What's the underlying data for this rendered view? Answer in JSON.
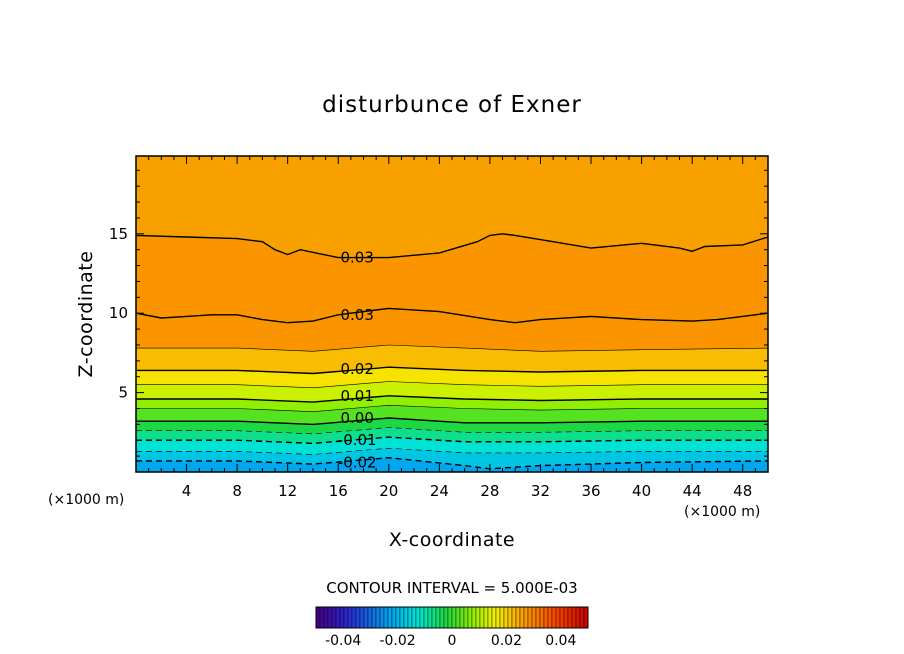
{
  "chart_data": {
    "type": "heatmap",
    "title": "disturbunce of Exner",
    "xlabel": "X-coordinate",
    "ylabel": "Z-coordinate",
    "x_unit": "(×1000 m)",
    "y_unit": "(×1000 m)",
    "xlim": [
      0,
      50
    ],
    "ylim": [
      0,
      19.9
    ],
    "x_ticks": [
      "4",
      "8",
      "12",
      "16",
      "20",
      "24",
      "28",
      "32",
      "36",
      "40",
      "44",
      "48"
    ],
    "y_ticks": [
      "5",
      "10",
      "15"
    ],
    "contour_interval_text": "CONTOUR INTERVAL = 5.000E-03",
    "contour_labels": [
      {
        "text": "0.03",
        "x": 17.5,
        "z": 13.5
      },
      {
        "text": "0.03",
        "x": 17.5,
        "z": 9.9
      },
      {
        "text": "0.02",
        "x": 17.5,
        "z": 6.5
      },
      {
        "text": "0.01",
        "x": 17.5,
        "z": 4.8
      },
      {
        "text": "0.00",
        "x": 17.5,
        "z": 3.4
      },
      {
        "text": "-0.01",
        "x": 17.5,
        "z": 2.0
      },
      {
        "text": "-0.02",
        "x": 17.5,
        "z": 0.6
      }
    ],
    "contours": [
      {
        "level": 0.03,
        "x": [
          0,
          4,
          8,
          10,
          11,
          12,
          13,
          16,
          20,
          24,
          27,
          28,
          29,
          30,
          33,
          36,
          40,
          43,
          44,
          45,
          48,
          50
        ],
        "z": [
          14.9,
          14.8,
          14.7,
          14.5,
          14.0,
          13.7,
          14.0,
          13.5,
          13.5,
          13.8,
          14.5,
          14.9,
          15.0,
          14.9,
          14.5,
          14.1,
          14.4,
          14.1,
          13.9,
          14.2,
          14.3,
          14.8
        ]
      },
      {
        "level": 0.03,
        "x": [
          0,
          2,
          4,
          6,
          8,
          10,
          12,
          14,
          16,
          20,
          24,
          28,
          30,
          32,
          36,
          40,
          44,
          46,
          48,
          50
        ],
        "z": [
          10.0,
          9.7,
          9.8,
          9.9,
          9.9,
          9.6,
          9.4,
          9.5,
          9.9,
          10.3,
          10.1,
          9.6,
          9.4,
          9.6,
          9.8,
          9.6,
          9.5,
          9.6,
          9.8,
          10.0
        ]
      },
      {
        "level": 0.025,
        "x": [
          0,
          8,
          14,
          20,
          26,
          32,
          40,
          50
        ],
        "z": [
          7.8,
          7.8,
          7.6,
          8.0,
          7.8,
          7.6,
          7.7,
          7.8
        ]
      },
      {
        "level": 0.02,
        "x": [
          0,
          8,
          14,
          20,
          26,
          32,
          40,
          50
        ],
        "z": [
          6.4,
          6.4,
          6.2,
          6.6,
          6.4,
          6.3,
          6.4,
          6.4
        ]
      },
      {
        "level": 0.015,
        "x": [
          0,
          8,
          14,
          20,
          26,
          32,
          40,
          50
        ],
        "z": [
          5.5,
          5.5,
          5.3,
          5.7,
          5.5,
          5.4,
          5.5,
          5.5
        ]
      },
      {
        "level": 0.01,
        "x": [
          0,
          8,
          14,
          20,
          26,
          32,
          40,
          50
        ],
        "z": [
          4.6,
          4.6,
          4.4,
          4.8,
          4.6,
          4.5,
          4.6,
          4.6
        ]
      },
      {
        "level": 0.005,
        "x": [
          0,
          8,
          14,
          20,
          26,
          32,
          40,
          50
        ],
        "z": [
          4.0,
          4.0,
          3.8,
          4.2,
          4.0,
          3.9,
          4.0,
          4.0
        ]
      },
      {
        "level": 0.0,
        "x": [
          0,
          8,
          14,
          20,
          26,
          32,
          40,
          50
        ],
        "z": [
          3.2,
          3.2,
          3.0,
          3.4,
          3.1,
          3.1,
          3.2,
          3.2
        ]
      },
      {
        "level": -0.005,
        "x": [
          0,
          8,
          14,
          20,
          26,
          32,
          40,
          50
        ],
        "z": [
          2.6,
          2.6,
          2.4,
          2.8,
          2.5,
          2.5,
          2.6,
          2.6
        ]
      },
      {
        "level": -0.01,
        "x": [
          0,
          8,
          14,
          20,
          26,
          32,
          40,
          50
        ],
        "z": [
          2.0,
          2.0,
          1.8,
          2.2,
          1.9,
          1.9,
          2.0,
          2.0
        ]
      },
      {
        "level": -0.015,
        "x": [
          0,
          8,
          14,
          20,
          26,
          32,
          40,
          50
        ],
        "z": [
          1.3,
          1.3,
          1.1,
          1.5,
          1.2,
          1.2,
          1.3,
          1.3
        ]
      },
      {
        "level": -0.02,
        "x": [
          0,
          8,
          14,
          20,
          26,
          28,
          32,
          40,
          50
        ],
        "z": [
          0.7,
          0.7,
          0.5,
          0.9,
          0.4,
          0.2,
          0.4,
          0.6,
          0.7
        ]
      }
    ],
    "colorbar": {
      "min": -0.05,
      "max": 0.05,
      "tick_labels": [
        {
          "text": "-0.04",
          "value": -0.04
        },
        {
          "text": "-0.02",
          "value": -0.02
        },
        {
          "text": "0",
          "value": 0
        },
        {
          "text": "0.02",
          "value": 0.02
        },
        {
          "text": "0.04",
          "value": 0.04
        }
      ]
    },
    "grid": false,
    "legend": "colorbar-bottom"
  }
}
